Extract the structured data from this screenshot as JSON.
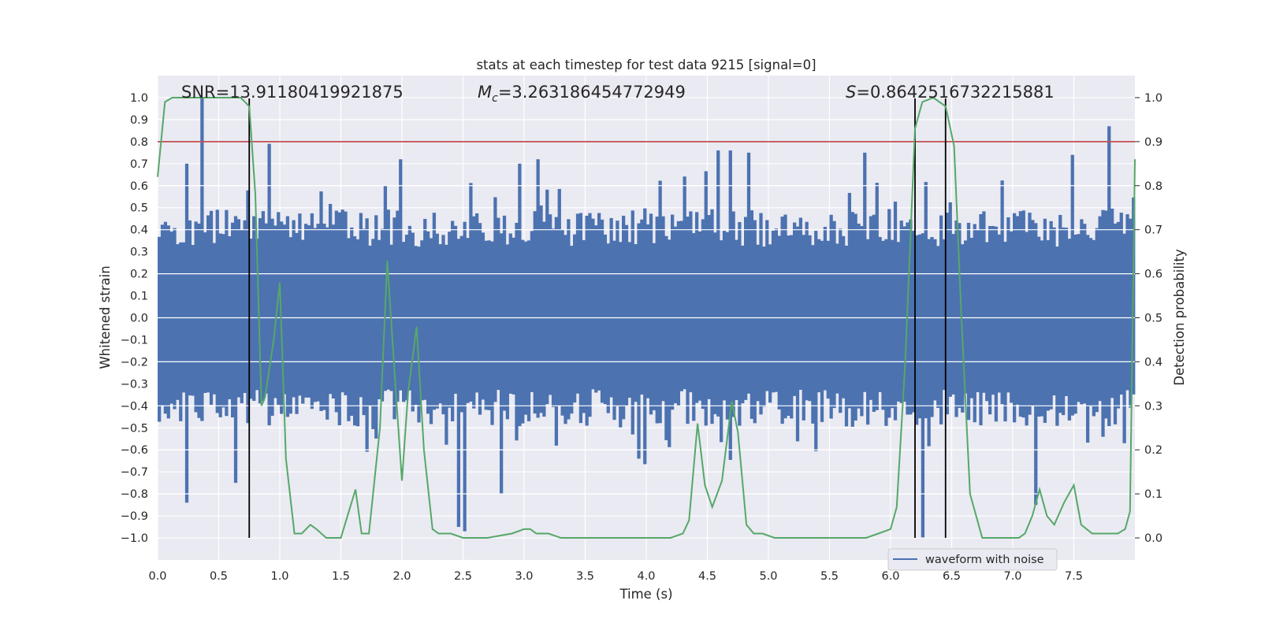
{
  "chart_data": {
    "type": "line",
    "title": "stats at each timestep for test data 9215 [signal=0]",
    "xlabel": "Time (s)",
    "ylabel_left": "Whitened strain",
    "ylabel_right": "Detection probability",
    "xlim": [
      0,
      8
    ],
    "ylim_left": [
      -1.1,
      1.1
    ],
    "ylim_right": [
      -0.05,
      1.05
    ],
    "x_ticks": [
      "0.0",
      "0.5",
      "1.0",
      "1.5",
      "2.0",
      "2.5",
      "3.0",
      "3.5",
      "4.0",
      "4.5",
      "5.0",
      "5.5",
      "6.0",
      "6.5",
      "7.0",
      "7.5"
    ],
    "y_ticks_left": [
      "1.0",
      "0.9",
      "0.8",
      "0.7",
      "0.6",
      "0.5",
      "0.4",
      "0.3",
      "0.2",
      "0.1",
      "0.0",
      "-0.1",
      "-0.2",
      "-0.3",
      "-0.4",
      "-0.5",
      "-0.6",
      "-0.7",
      "-0.8",
      "-0.9",
      "-1.0"
    ],
    "y_ticks_right": [
      "1.0",
      "0.9",
      "0.8",
      "0.7",
      "0.6",
      "0.5",
      "0.4",
      "0.3",
      "0.2",
      "0.1",
      "0.0"
    ],
    "annotations": {
      "snr": "SNR=13.91180419921875",
      "mc_symbol": "M",
      "mc_sub": "c",
      "mc_value": "=3.263186454772949",
      "s_symbol": "S",
      "s_value": "=0.8642516732215881"
    },
    "threshold": {
      "value": 0.9,
      "color": "#c44e52"
    },
    "vertical_lines": [
      0.75,
      6.2,
      6.45
    ],
    "legend": [
      "waveform with noise"
    ],
    "colors": {
      "waveform": "#4c72b0",
      "probability": "#55a868",
      "vline": "#000000",
      "background": "#eaeaf2"
    },
    "waveform_envelope": {
      "description": "dense whitened-strain trace drawn as vertical extents per time bin",
      "bins": 320,
      "base_upper": 0.38,
      "base_lower": -0.38,
      "peaks": [
        [
          0.35,
          1.0
        ],
        [
          0.23,
          0.7
        ],
        [
          0.62,
          -0.75
        ],
        [
          0.23,
          -0.84
        ],
        [
          0.9,
          0.79
        ],
        [
          1.85,
          0.6
        ],
        [
          2.47,
          -0.95
        ],
        [
          2.5,
          -0.97
        ],
        [
          2.95,
          0.7
        ],
        [
          4.6,
          0.76
        ],
        [
          4.7,
          0.76
        ],
        [
          4.85,
          0.75
        ],
        [
          5.8,
          0.75
        ],
        [
          6.26,
          -1.0
        ],
        [
          7.2,
          -0.85
        ],
        [
          7.5,
          0.74
        ],
        [
          7.8,
          0.87
        ],
        [
          1.98,
          0.72
        ],
        [
          3.1,
          0.72
        ],
        [
          2.8,
          -0.8
        ]
      ]
    },
    "probability": {
      "x": [
        0.0,
        0.06,
        0.12,
        0.2,
        0.4,
        0.6,
        0.68,
        0.75,
        0.8,
        0.85,
        0.88,
        0.95,
        1.0,
        1.05,
        1.12,
        1.18,
        1.25,
        1.3,
        1.38,
        1.43,
        1.5,
        1.62,
        1.67,
        1.73,
        1.82,
        1.88,
        1.95,
        2.0,
        2.05,
        2.12,
        2.18,
        2.25,
        2.3,
        2.4,
        2.5,
        2.7,
        2.9,
        3.0,
        3.05,
        3.1,
        3.2,
        3.3,
        3.5,
        3.7,
        3.9,
        4.1,
        4.2,
        4.3,
        4.35,
        4.42,
        4.48,
        4.54,
        4.62,
        4.7,
        4.75,
        4.82,
        4.88,
        4.95,
        5.05,
        5.3,
        5.6,
        5.8,
        5.9,
        6.0,
        6.05,
        6.12,
        6.2,
        6.26,
        6.35,
        6.4,
        6.45,
        6.52,
        6.58,
        6.65,
        6.75,
        6.9,
        7.05,
        7.1,
        7.16,
        7.22,
        7.28,
        7.34,
        7.42,
        7.5,
        7.56,
        7.65,
        7.8,
        7.86,
        7.92,
        7.96,
        8.0
      ],
      "y": [
        0.82,
        0.99,
        1.0,
        1.0,
        1.0,
        1.0,
        1.0,
        0.98,
        0.78,
        0.3,
        0.32,
        0.45,
        0.58,
        0.18,
        0.01,
        0.01,
        0.03,
        0.02,
        0.0,
        0.0,
        0.0,
        0.11,
        0.01,
        0.01,
        0.25,
        0.63,
        0.33,
        0.13,
        0.33,
        0.48,
        0.2,
        0.02,
        0.01,
        0.01,
        0.0,
        0.0,
        0.01,
        0.02,
        0.02,
        0.01,
        0.01,
        0.0,
        0.0,
        0.0,
        0.0,
        0.0,
        0.0,
        0.01,
        0.04,
        0.26,
        0.12,
        0.07,
        0.13,
        0.31,
        0.24,
        0.03,
        0.01,
        0.01,
        0.0,
        0.0,
        0.0,
        0.0,
        0.01,
        0.02,
        0.07,
        0.4,
        0.93,
        0.99,
        1.0,
        0.99,
        0.98,
        0.89,
        0.5,
        0.1,
        0.0,
        0.0,
        0.0,
        0.01,
        0.05,
        0.11,
        0.05,
        0.03,
        0.08,
        0.12,
        0.03,
        0.01,
        0.01,
        0.01,
        0.02,
        0.06,
        0.86
      ]
    }
  }
}
